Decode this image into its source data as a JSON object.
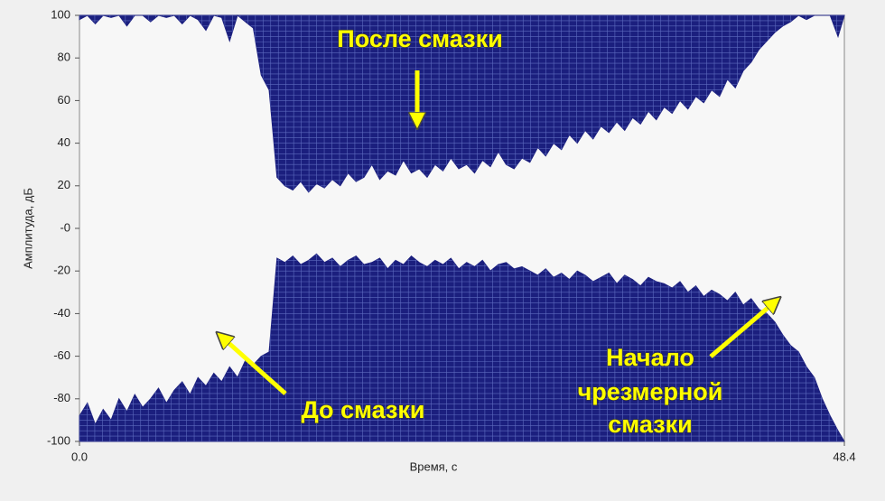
{
  "chart_data": {
    "type": "band",
    "xlabel": "Время, с",
    "ylabel": "Амплитуда, дБ",
    "xlim": [
      0,
      48.4
    ],
    "ylim": [
      -100,
      100
    ],
    "xticks": [
      {
        "value": 0,
        "label": "0.0"
      },
      48.4
    ],
    "yticks": [
      100,
      80,
      60,
      40,
      20,
      {
        "value": 0,
        "label": "-0"
      },
      -20,
      -40,
      -60,
      -80,
      -100
    ],
    "grid": true,
    "annotations": [
      {
        "text": "После смазки"
      },
      {
        "text": "До смазки"
      },
      {
        "lines": [
          "Начало",
          "чрезмерной",
          "смазки"
        ]
      }
    ],
    "x": [
      0,
      0.5,
      1,
      1.5,
      2,
      2.5,
      3,
      3.5,
      4,
      4.5,
      5,
      5.5,
      6,
      6.5,
      7,
      7.5,
      8,
      8.5,
      9,
      9.5,
      10,
      10.5,
      11,
      11.5,
      12,
      12.5,
      13,
      13.5,
      14,
      14.5,
      15,
      15.5,
      16,
      16.5,
      17,
      17.5,
      18,
      18.5,
      19,
      19.5,
      20,
      20.5,
      21,
      21.5,
      22,
      22.5,
      23,
      23.5,
      24,
      24.5,
      25,
      25.5,
      26,
      26.5,
      27,
      27.5,
      28,
      28.5,
      29,
      29.5,
      30,
      30.5,
      31,
      31.5,
      32,
      32.5,
      33,
      33.5,
      34,
      34.5,
      35,
      35.5,
      36,
      36.5,
      37,
      37.5,
      38,
      38.5,
      39,
      39.5,
      40,
      40.5,
      41,
      41.5,
      42,
      42.5,
      43,
      43.5,
      44,
      44.5,
      45,
      45.5,
      46,
      46.5,
      47,
      47.5,
      48,
      48.4
    ],
    "series": [
      {
        "color": "#1b1f7e",
        "values": [
          98,
          100,
          96,
          100,
          99,
          100,
          95,
          100,
          100,
          97,
          100,
          99,
          100,
          96,
          100,
          98,
          93,
          100,
          99,
          88,
          100,
          97,
          94,
          72,
          65,
          24,
          20,
          18,
          22,
          17,
          21,
          19,
          23,
          20,
          26,
          22,
          24,
          30,
          23,
          27,
          25,
          32,
          26,
          28,
          24,
          30,
          27,
          33,
          28,
          30,
          26,
          32,
          29,
          36,
          30,
          28,
          33,
          31,
          38,
          34,
          40,
          37,
          44,
          40,
          46,
          42,
          48,
          45,
          50,
          46,
          52,
          49,
          55,
          51,
          57,
          54,
          60,
          56,
          62,
          59,
          65,
          62,
          70,
          66,
          74,
          78,
          84,
          88,
          92,
          95,
          97,
          100,
          98,
          100,
          100,
          100,
          90,
          100
        ]
      },
      {
        "color": "#1b1f7e",
        "values": [
          -88,
          -82,
          -92,
          -85,
          -90,
          -80,
          -86,
          -78,
          -84,
          -80,
          -75,
          -82,
          -76,
          -72,
          -78,
          -70,
          -74,
          -68,
          -72,
          -65,
          -70,
          -62,
          -64,
          -60,
          -58,
          -14,
          -16,
          -13,
          -17,
          -15,
          -12,
          -16,
          -14,
          -18,
          -15,
          -13,
          -17,
          -16,
          -14,
          -19,
          -15,
          -17,
          -13,
          -16,
          -18,
          -15,
          -17,
          -14,
          -19,
          -16,
          -18,
          -15,
          -20,
          -17,
          -16,
          -19,
          -18,
          -20,
          -22,
          -19,
          -23,
          -21,
          -24,
          -20,
          -22,
          -25,
          -23,
          -21,
          -26,
          -22,
          -24,
          -27,
          -23,
          -25,
          -26,
          -28,
          -25,
          -30,
          -27,
          -32,
          -29,
          -31,
          -34,
          -30,
          -36,
          -33,
          -38,
          -40,
          -44,
          -50,
          -55,
          -58,
          -65,
          -70,
          -80,
          -88,
          -95,
          -100
        ]
      }
    ]
  }
}
